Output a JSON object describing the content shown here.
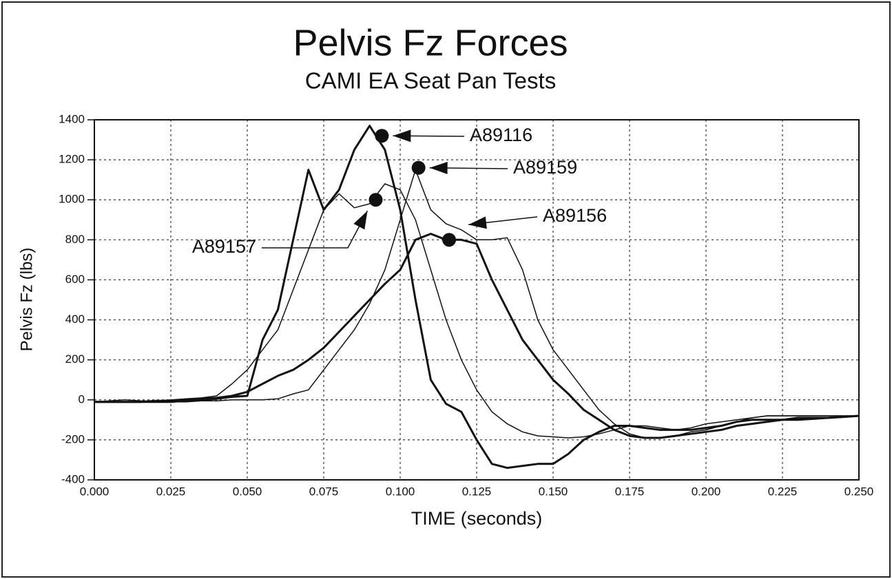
{
  "chart_data": {
    "type": "line",
    "title": "Pelvis Fz Forces",
    "subtitle": "CAMI EA Seat Pan Tests",
    "x_label": "TIME (seconds)",
    "y_label": "Pelvis Fz (lbs)",
    "xlim": [
      0,
      0.25
    ],
    "ylim": [
      -400,
      1400
    ],
    "grid": true,
    "xticks": [
      {
        "value": 0,
        "label": "0.000"
      },
      {
        "value": 0.025,
        "label": "0.025"
      },
      {
        "value": 0.05,
        "label": "0.050"
      },
      {
        "value": 0.075,
        "label": "0.075"
      },
      {
        "value": 0.1,
        "label": "0.100"
      },
      {
        "value": 0.125,
        "label": "0.125"
      },
      {
        "value": 0.15,
        "label": "0.150"
      },
      {
        "value": 0.175,
        "label": "0.175"
      },
      {
        "value": 0.2,
        "label": "0.200"
      },
      {
        "value": 0.225,
        "label": "0.225"
      },
      {
        "value": 0.25,
        "label": "0.250"
      }
    ],
    "yticks": [
      -400,
      -200,
      0,
      200,
      400,
      600,
      800,
      1000,
      1200,
      1400
    ],
    "x": [
      0,
      0.005,
      0.01,
      0.015,
      0.02,
      0.025,
      0.03,
      0.035,
      0.04,
      0.045,
      0.05,
      0.055,
      0.06,
      0.065,
      0.07,
      0.075,
      0.08,
      0.085,
      0.09,
      0.095,
      0.1,
      0.105,
      0.11,
      0.115,
      0.12,
      0.125,
      0.13,
      0.135,
      0.14,
      0.145,
      0.15,
      0.155,
      0.16,
      0.165,
      0.17,
      0.175,
      0.18,
      0.185,
      0.19,
      0.195,
      0.2,
      0.205,
      0.21,
      0.215,
      0.22,
      0.225,
      0.23,
      0.235,
      0.24,
      0.245,
      0.25
    ],
    "series": [
      {
        "name": "A89116",
        "color": "#111111",
        "width": 3,
        "values": [
          -10,
          -10,
          -10,
          -10,
          -10,
          -10,
          -5,
          0,
          5,
          15,
          20,
          300,
          450,
          800,
          1150,
          950,
          1050,
          1250,
          1370,
          1250,
          950,
          500,
          100,
          -20,
          -60,
          -200,
          -320,
          -340,
          -330,
          -320,
          -320,
          -270,
          -200,
          -160,
          -130,
          -130,
          -140,
          -150,
          -150,
          -150,
          -140,
          -130,
          -110,
          -100,
          -100,
          -100,
          -90,
          -90,
          -90,
          -85,
          -80
        ]
      },
      {
        "name": "A89159",
        "color": "#111111",
        "width": 1.5,
        "values": [
          -10,
          -10,
          -10,
          -10,
          -10,
          -10,
          -10,
          -5,
          -5,
          0,
          0,
          0,
          5,
          30,
          50,
          150,
          250,
          350,
          480,
          650,
          900,
          1150,
          950,
          880,
          850,
          800,
          800,
          810,
          650,
          400,
          250,
          150,
          50,
          -50,
          -120,
          -170,
          -190,
          -190,
          -180,
          -160,
          -150,
          -130,
          -110,
          -90,
          -80,
          -80,
          -80,
          -80,
          -80,
          -80,
          -80
        ]
      },
      {
        "name": "A89156",
        "color": "#111111",
        "width": 3,
        "values": [
          -10,
          -10,
          -10,
          -10,
          -5,
          -5,
          0,
          5,
          10,
          20,
          40,
          80,
          120,
          150,
          200,
          260,
          340,
          420,
          500,
          580,
          650,
          800,
          830,
          800,
          800,
          780,
          600,
          450,
          300,
          200,
          100,
          30,
          -50,
          -100,
          -150,
          -180,
          -190,
          -190,
          -180,
          -170,
          -160,
          -150,
          -130,
          -120,
          -110,
          -100,
          -100,
          -95,
          -90,
          -85,
          -80
        ]
      },
      {
        "name": "A89157",
        "color": "#111111",
        "width": 1.5,
        "values": [
          -10,
          -5,
          0,
          -5,
          -5,
          0,
          5,
          10,
          20,
          80,
          150,
          250,
          350,
          550,
          750,
          950,
          1030,
          960,
          980,
          1080,
          1050,
          900,
          650,
          400,
          200,
          50,
          -60,
          -120,
          -160,
          -180,
          -185,
          -190,
          -185,
          -170,
          -150,
          -130,
          -130,
          -140,
          -150,
          -140,
          -120,
          -110,
          -100,
          -90,
          -80,
          -80,
          -80,
          -80,
          -80,
          -80,
          -80
        ]
      }
    ],
    "annotations": [
      {
        "text": "A89116",
        "x": 0.094,
        "y": 1320
      },
      {
        "text": "A89159",
        "x": 0.106,
        "y": 1160
      },
      {
        "text": "A89156",
        "x": 0.116,
        "y": 800
      },
      {
        "text": "A89157",
        "x": 0.092,
        "y": 1000
      }
    ]
  }
}
